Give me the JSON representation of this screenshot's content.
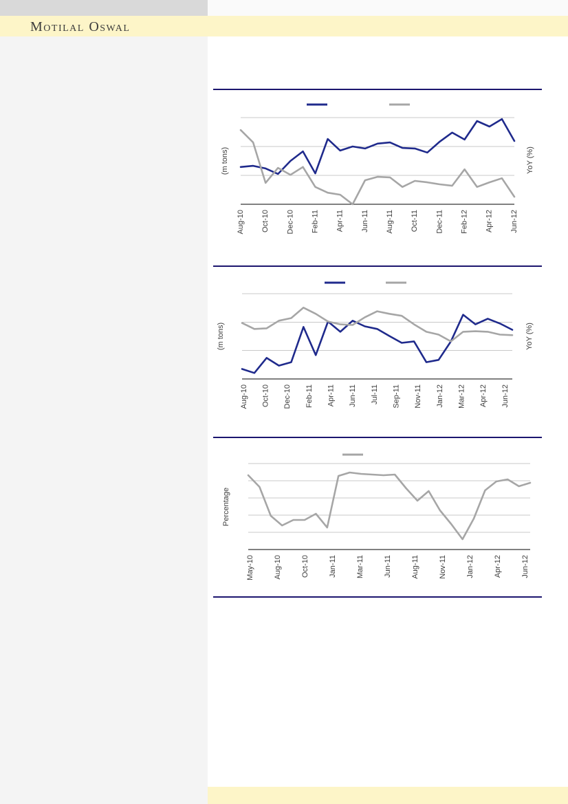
{
  "theme": {
    "top_bar_gray": "#d9d9d9",
    "top_strip_right": "#fafafa",
    "banner_yellow": "#fdf5c8",
    "sidebar_gray": "#f4f4f4",
    "divider_navy": "#1b156e",
    "series_navy": "#1f2a8c",
    "series_gray": "#a6a6a6",
    "gridline_gray": "#c8c8c8",
    "axis_black": "#000000",
    "tick_text": "#3d3d3d"
  },
  "header": {
    "brand": "Motilal Oswal"
  },
  "chart_data": [
    {
      "type": "line",
      "title": "",
      "ylabel_left": "(m tons)",
      "ylabel_right": "YoY (%)",
      "x_labels": [
        "Aug-10",
        "Oct-10",
        "Dec-10",
        "Feb-11",
        "Apr-11",
        "Jun-11",
        "Aug-11",
        "Oct-11",
        "Dec-11",
        "Feb-12",
        "Apr-12",
        "Jun-12"
      ],
      "ylim": [
        0,
        3
      ],
      "gridlines": 3,
      "grid_on": true,
      "legend_position": "top",
      "legend_text_visible": false,
      "y_tick_labels_visible": false,
      "series": [
        {
          "name": "navy-series",
          "color": "#1f2a8c",
          "values": [
            1.29,
            1.33,
            1.24,
            1.05,
            1.5,
            1.83,
            1.07,
            2.26,
            1.86,
            2.0,
            1.93,
            2.1,
            2.14,
            1.95,
            1.93,
            1.79,
            2.17,
            2.48,
            2.24,
            2.88,
            2.69,
            2.95,
            2.19
          ]
        },
        {
          "name": "gray-series",
          "color": "#a6a6a6",
          "values": [
            2.57,
            2.14,
            0.74,
            1.26,
            1.02,
            1.29,
            0.6,
            0.4,
            0.33,
            0.0,
            0.83,
            0.95,
            0.93,
            0.6,
            0.81,
            0.76,
            0.69,
            0.64,
            1.21,
            0.6,
            0.76,
            0.9,
            0.26
          ]
        }
      ]
    },
    {
      "type": "line",
      "title": "",
      "ylabel_left": "(m tons)",
      "ylabel_right": "YoY (%)",
      "x_labels": [
        "Aug-10",
        "Oct-10",
        "Dec-10",
        "Feb-11",
        "Apr-11",
        "Jun-11",
        "Jul-11",
        "Sep-11",
        "Nov-11",
        "Jan-12",
        "Mar-12",
        "Apr-12",
        "Jun-12"
      ],
      "ylim": [
        0,
        3
      ],
      "gridlines": 3,
      "grid_on": true,
      "legend_position": "top",
      "legend_text_visible": false,
      "y_tick_labels_visible": false,
      "series": [
        {
          "name": "navy-series",
          "color": "#1f2a8c",
          "values": [
            0.35,
            0.21,
            0.74,
            0.47,
            0.59,
            1.83,
            0.84,
            2.02,
            1.66,
            2.05,
            1.85,
            1.76,
            1.51,
            1.27,
            1.32,
            0.59,
            0.67,
            1.32,
            2.26,
            1.92,
            2.12,
            1.95,
            1.73
          ]
        },
        {
          "name": "gray-series",
          "color": "#a6a6a6",
          "values": [
            1.97,
            1.76,
            1.78,
            2.05,
            2.14,
            2.51,
            2.29,
            2.02,
            1.92,
            1.9,
            2.17,
            2.38,
            2.29,
            2.22,
            1.92,
            1.66,
            1.56,
            1.32,
            1.66,
            1.68,
            1.66,
            1.56,
            1.54
          ]
        }
      ]
    },
    {
      "type": "line",
      "title": "",
      "ylabel_left": "Percentage",
      "ylabel_right": "",
      "x_labels": [
        "May-10",
        "Aug-10",
        "Oct-10",
        "Jan-11",
        "Mar-11",
        "Jun-11",
        "Aug-11",
        "Nov-11",
        "Jan-12",
        "Apr-12",
        "Jun-12"
      ],
      "ylim": [
        0,
        5
      ],
      "gridlines": 5,
      "grid_on": true,
      "legend_position": "top",
      "legend_text_visible": false,
      "y_tick_labels_visible": false,
      "series": [
        {
          "name": "gray-series",
          "color": "#a6a6a6",
          "values": [
            4.32,
            3.64,
            1.96,
            1.4,
            1.72,
            1.72,
            2.08,
            1.28,
            4.28,
            4.48,
            4.4,
            4.36,
            4.32,
            4.36,
            3.56,
            2.84,
            3.4,
            2.28,
            1.48,
            0.6,
            1.8,
            3.44,
            3.96,
            4.08,
            3.68,
            3.88
          ]
        }
      ]
    }
  ]
}
